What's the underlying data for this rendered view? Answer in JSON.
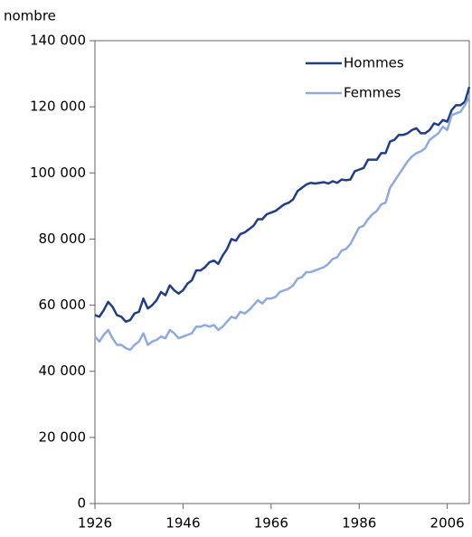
{
  "chart_data": {
    "type": "line",
    "y_label": "nombre",
    "x": [
      1926,
      1927,
      1928,
      1929,
      1930,
      1931,
      1932,
      1933,
      1934,
      1935,
      1936,
      1937,
      1938,
      1939,
      1940,
      1941,
      1942,
      1943,
      1944,
      1945,
      1946,
      1947,
      1948,
      1949,
      1950,
      1951,
      1952,
      1953,
      1954,
      1955,
      1956,
      1957,
      1958,
      1959,
      1960,
      1961,
      1962,
      1963,
      1964,
      1965,
      1966,
      1967,
      1968,
      1969,
      1970,
      1971,
      1972,
      1973,
      1974,
      1975,
      1976,
      1977,
      1978,
      1979,
      1980,
      1981,
      1982,
      1983,
      1984,
      1985,
      1986,
      1987,
      1988,
      1989,
      1990,
      1991,
      1992,
      1993,
      1994,
      1995,
      1996,
      1997,
      1998,
      1999,
      2000,
      2001,
      2002,
      2003,
      2004,
      2005,
      2006,
      2007,
      2008,
      2009,
      2010,
      2011
    ],
    "series": [
      {
        "name": "Hommes",
        "color": "#203d85",
        "values": [
          57000,
          56500,
          58500,
          61000,
          59500,
          57000,
          56500,
          55000,
          55500,
          57500,
          58000,
          62000,
          59000,
          60000,
          61500,
          64000,
          63000,
          66000,
          64500,
          63500,
          64500,
          66500,
          67500,
          70500,
          70500,
          71500,
          73000,
          73500,
          72500,
          75000,
          77000,
          80000,
          79500,
          81500,
          82000,
          83000,
          84000,
          86000,
          86000,
          87500,
          88000,
          88500,
          89500,
          90500,
          91000,
          92000,
          94500,
          95500,
          96500,
          97000,
          96800,
          97000,
          97200,
          96800,
          97500,
          97000,
          98000,
          97800,
          98000,
          100500,
          101000,
          101500,
          104000,
          104000,
          104000,
          106000,
          106000,
          109500,
          110000,
          111500,
          111500,
          112000,
          113000,
          113500,
          112000,
          112000,
          113000,
          115000,
          114500,
          116000,
          115500,
          119000,
          120500,
          120500,
          121500,
          126000
        ]
      },
      {
        "name": "Femmes",
        "color": "#8faadc",
        "values": [
          50500,
          49000,
          51000,
          52500,
          50000,
          48000,
          48000,
          47000,
          46500,
          48000,
          49000,
          51500,
          48000,
          49000,
          49500,
          50500,
          50000,
          52500,
          51500,
          50000,
          50500,
          51000,
          51500,
          53500,
          53500,
          54000,
          53500,
          54000,
          52500,
          53500,
          55000,
          56500,
          56000,
          58000,
          57500,
          58500,
          60000,
          61500,
          60500,
          62000,
          62000,
          62500,
          64000,
          64500,
          65000,
          66000,
          68000,
          68500,
          70000,
          70000,
          70500,
          71000,
          71500,
          72500,
          74000,
          74500,
          76500,
          77000,
          78500,
          81000,
          83500,
          84000,
          86000,
          87500,
          88500,
          90500,
          91000,
          95500,
          97500,
          99500,
          101500,
          103500,
          105000,
          106000,
          106500,
          107500,
          110000,
          111000,
          112000,
          114000,
          113000,
          117500,
          118000,
          118500,
          120500,
          123000
        ]
      }
    ],
    "xlim": [
      1926,
      2011
    ],
    "xticks": [
      1926,
      1946,
      1966,
      1986,
      2006
    ],
    "ylim": [
      0,
      140000
    ],
    "yticks": [
      0,
      {
        "value": 20000,
        "label": "20 000"
      },
      {
        "value": 40000,
        "label": "40 000"
      },
      {
        "value": 60000,
        "label": "60 000"
      },
      {
        "value": 80000,
        "label": "80 000"
      },
      {
        "value": 100000,
        "label": "100 000"
      },
      {
        "value": 120000,
        "label": "120 000"
      },
      {
        "value": 140000,
        "label": "140 000"
      }
    ],
    "legend": "top-right"
  }
}
